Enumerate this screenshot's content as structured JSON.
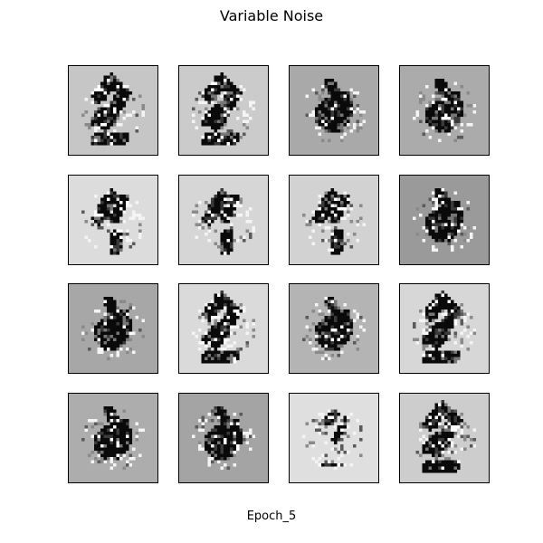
{
  "figure": {
    "title": "Variable Noise",
    "caption": "Epoch_5"
  },
  "tiles": [
    {
      "bg": "#c6c6c6",
      "shape": "two"
    },
    {
      "bg": "#cbcbcb",
      "shape": "two"
    },
    {
      "bg": "#a9a9a9",
      "shape": "blob"
    },
    {
      "bg": "#ababab",
      "shape": "blob"
    },
    {
      "bg": "#dcdcdc",
      "shape": "strokes"
    },
    {
      "bg": "#d6d6d6",
      "shape": "strokes"
    },
    {
      "bg": "#d2d2d2",
      "shape": "strokes"
    },
    {
      "bg": "#9a9a9a",
      "shape": "blob"
    },
    {
      "bg": "#a7a7a7",
      "shape": "blob"
    },
    {
      "bg": "#dadada",
      "shape": "two"
    },
    {
      "bg": "#b4b4b4",
      "shape": "blob"
    },
    {
      "bg": "#d7d7d7",
      "shape": "two"
    },
    {
      "bg": "#adadad",
      "shape": "blob"
    },
    {
      "bg": "#a4a4a4",
      "shape": "blob"
    },
    {
      "bg": "#dfdfdf",
      "shape": "faint"
    },
    {
      "bg": "#cdcdcd",
      "shape": "two"
    }
  ]
}
